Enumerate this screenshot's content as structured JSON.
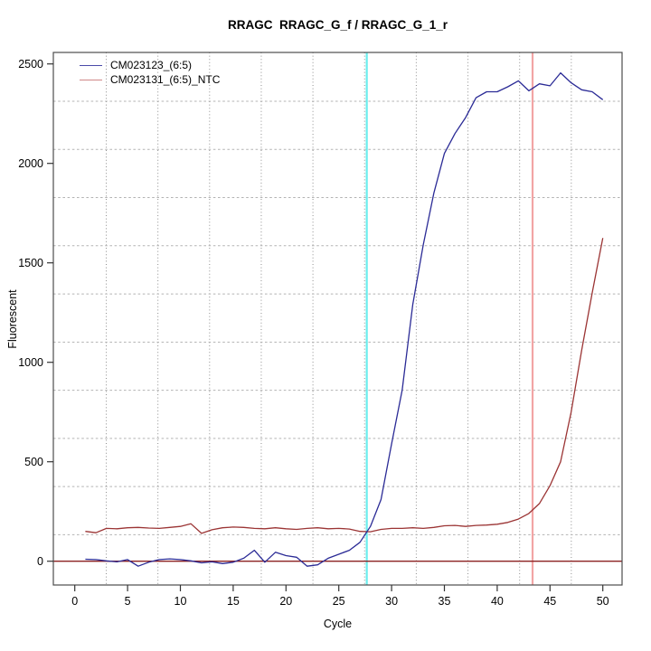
{
  "chart_data": {
    "type": "line",
    "title": "RRAGC  RRAGC_G_f / RRAGC_G_1_r",
    "xlabel": "Cycle",
    "ylabel": "Fluorescent",
    "x_ticks": [
      0,
      5,
      10,
      15,
      20,
      25,
      30,
      35,
      40,
      45,
      50
    ],
    "y_ticks": [
      0,
      500,
      1000,
      1500,
      2000,
      2500
    ],
    "xlim": [
      -2,
      52
    ],
    "ylim": [
      -120,
      2560
    ],
    "grid": true,
    "legend_position": "top-left",
    "x": [
      1,
      2,
      3,
      4,
      5,
      6,
      7,
      8,
      9,
      10,
      11,
      12,
      13,
      14,
      15,
      16,
      17,
      18,
      19,
      20,
      21,
      22,
      23,
      24,
      25,
      26,
      27,
      28,
      29,
      30,
      31,
      32,
      33,
      34,
      35,
      36,
      37,
      38,
      39,
      40,
      41,
      42,
      43,
      44,
      45,
      46,
      47,
      48,
      49,
      50
    ],
    "series": [
      {
        "name": "CM023123_(6:5)",
        "color": "#2B2B96",
        "legend_color": "#4A4AA8",
        "values": [
          10,
          8,
          2,
          -3,
          8,
          -25,
          -5,
          8,
          12,
          8,
          2,
          -8,
          -3,
          -12,
          -5,
          15,
          55,
          -5,
          45,
          28,
          20,
          -25,
          -18,
          15,
          35,
          55,
          95,
          175,
          310,
          590,
          860,
          1290,
          1590,
          1850,
          2050,
          2150,
          2230,
          2330,
          2360,
          2360,
          2385,
          2415,
          2365,
          2400,
          2390,
          2455,
          2405,
          2370,
          2360,
          2320
        ]
      },
      {
        "name": "CM023131_(6:5)_NTC",
        "color": "#9B3434",
        "legend_color": "#D08888",
        "values": [
          150,
          143,
          165,
          163,
          168,
          170,
          167,
          165,
          170,
          175,
          188,
          140,
          158,
          168,
          172,
          170,
          165,
          163,
          168,
          163,
          160,
          165,
          168,
          163,
          165,
          162,
          150,
          148,
          160,
          165,
          165,
          168,
          165,
          170,
          178,
          180,
          175,
          180,
          182,
          186,
          195,
          212,
          240,
          290,
          380,
          500,
          750,
          1060,
          1350,
          1625
        ]
      }
    ],
    "annotations": {
      "threshold_hline": {
        "y": 0,
        "color": "#8B2020"
      },
      "ct_vlines": [
        {
          "x": 27.65,
          "color": "#6AEDED"
        },
        {
          "x": 43.35,
          "color": "#F2A5A5"
        }
      ]
    }
  }
}
